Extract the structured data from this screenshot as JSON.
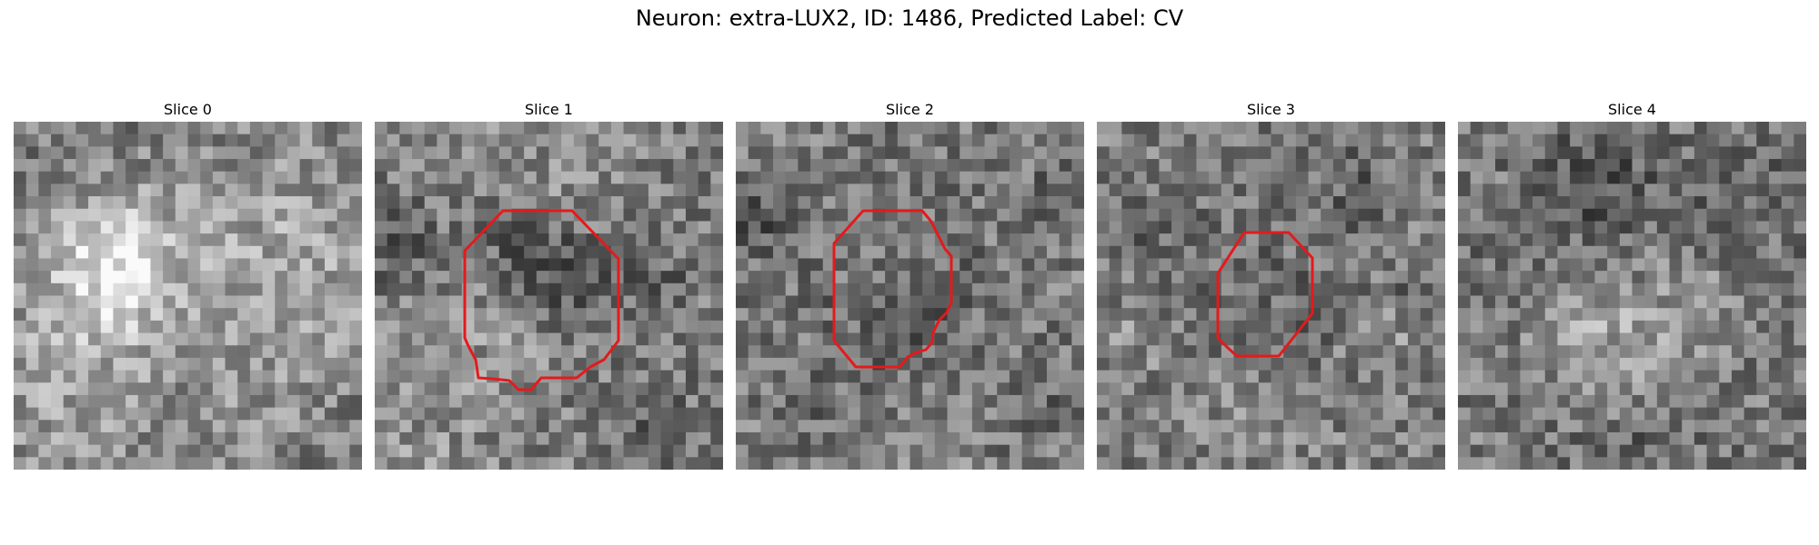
{
  "figure": {
    "title": "Neuron: extra-LUX2, ID: 1486, Predicted Label: CV"
  },
  "colors": {
    "background": "#ffffff",
    "outline": "#e41a1c"
  },
  "colormap": "gray",
  "grid_size": 28,
  "panels": [
    {
      "title": "Slice 0",
      "has_outline": false,
      "texture": [
        [
          0.3,
          0.4,
          0.3,
          1.05
        ],
        [
          0.7,
          0.3,
          0.45,
          0.3
        ],
        [
          0.2,
          0.7,
          0.7,
          0.2
        ],
        [
          0.2,
          0.6,
          0.4,
          0.2
        ],
        [
          0.2,
          0.6,
          0.3,
          0.1
        ],
        [
          0.9,
          0.4,
          0.5,
          0.2
        ],
        [
          0.9,
          0.6,
          0.3,
          0.2
        ],
        [
          -0.5,
          0.1,
          0.25,
          0.2
        ],
        [
          -0.5,
          0.6,
          0.3,
          0.2
        ],
        [
          0.7,
          0.8,
          0.3,
          0.2
        ],
        [
          0.1,
          0.9,
          0.4,
          0.12
        ]
      ]
    },
    {
      "title": "Slice 1",
      "has_outline": true,
      "texture": [
        [
          0.4,
          0.5,
          0.35,
          0.4
        ],
        [
          0.4,
          0.4,
          0.25,
          -0.55
        ],
        [
          0.55,
          0.45,
          0.25,
          -0.55
        ],
        [
          0.05,
          0.35,
          0.2,
          -0.4
        ],
        [
          0.8,
          0.45,
          0.15,
          -0.35
        ],
        [
          0.1,
          0.9,
          0.5,
          0.25
        ],
        [
          0.5,
          0.1,
          0.5,
          0.2
        ],
        [
          0.8,
          0.9,
          0.2,
          -0.25
        ]
      ]
    },
    {
      "title": "Slice 2",
      "has_outline": true,
      "texture": [
        [
          0.5,
          0.45,
          0.3,
          0.35
        ],
        [
          0.5,
          0.5,
          0.35,
          -0.55
        ],
        [
          0.05,
          0.3,
          0.15,
          -0.45
        ],
        [
          0.95,
          0.2,
          0.15,
          -0.4
        ],
        [
          0.85,
          0.8,
          0.15,
          -0.3
        ],
        [
          0.5,
          0.9,
          0.3,
          0.15
        ],
        [
          0.3,
          0.85,
          0.2,
          -0.2
        ]
      ]
    },
    {
      "title": "Slice 3",
      "has_outline": true,
      "texture": [
        [
          0.5,
          0.55,
          0.25,
          0.3
        ],
        [
          0.5,
          0.55,
          0.3,
          -0.45
        ],
        [
          0.2,
          0.4,
          0.2,
          -0.3
        ],
        [
          0.75,
          0.2,
          0.2,
          -0.25
        ],
        [
          0.85,
          0.6,
          0.2,
          0.3
        ],
        [
          0.1,
          0.6,
          0.25,
          0.2
        ],
        [
          0.5,
          0.85,
          0.3,
          0.2
        ],
        [
          0.9,
          0.5,
          0.15,
          -0.3
        ]
      ]
    },
    {
      "title": "Slice 4",
      "has_outline": false,
      "texture": [
        [
          0.35,
          0.55,
          0.3,
          0.45
        ],
        [
          0.7,
          0.55,
          0.3,
          0.4
        ],
        [
          0.4,
          0.2,
          0.35,
          -0.4
        ],
        [
          0.8,
          0.25,
          0.3,
          -0.3
        ],
        [
          0.15,
          0.5,
          0.3,
          -0.2
        ],
        [
          0.85,
          0.6,
          0.25,
          -0.2
        ],
        [
          0.5,
          0.95,
          0.3,
          -0.3
        ],
        [
          0.5,
          0.75,
          0.25,
          0.3
        ]
      ]
    }
  ]
}
